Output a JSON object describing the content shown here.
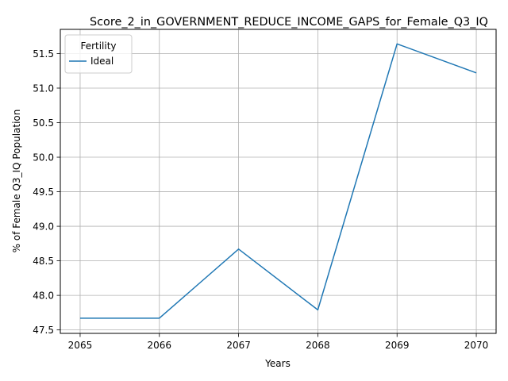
{
  "chart_data": {
    "type": "line",
    "title": "Score_2_in_GOVERNMENT_REDUCE_INCOME_GAPS_for_Female_Q3_IQ",
    "xlabel": "Years",
    "ylabel": "% of Female Q3_IQ Population",
    "x": [
      2065,
      2066,
      2067,
      2068,
      2069,
      2070
    ],
    "xticks": [
      "2065",
      "2066",
      "2067",
      "2068",
      "2069",
      "2070"
    ],
    "yticks": [
      "47.5",
      "48.0",
      "48.5",
      "49.0",
      "49.5",
      "50.0",
      "50.5",
      "51.0",
      "51.5"
    ],
    "xlim": [
      2064.75,
      2070.25
    ],
    "ylim": [
      47.45,
      51.85
    ],
    "grid": true,
    "legend": {
      "title": "Fertility",
      "position": "top-left"
    },
    "series": [
      {
        "name": "Ideal",
        "color": "#1f77b4",
        "values": [
          47.67,
          47.67,
          48.67,
          47.79,
          51.64,
          51.22
        ]
      }
    ]
  }
}
